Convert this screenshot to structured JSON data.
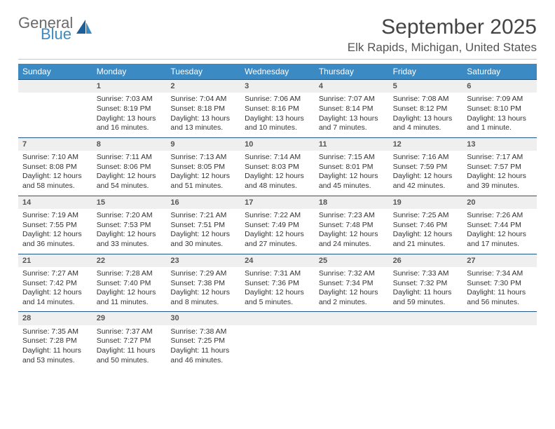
{
  "brand": {
    "general": "General",
    "blue": "Blue"
  },
  "header": {
    "month_title": "September 2025",
    "location": "Elk Rapids, Michigan, United States"
  },
  "colors": {
    "header_bg": "#3b8ac4",
    "header_text": "#ffffff",
    "daynum_bg": "#efefef",
    "daynum_border": "#20568a",
    "text": "#333333",
    "logo_gray": "#6a6a6a",
    "logo_blue": "#3b8ac4"
  },
  "weekdays": [
    "Sunday",
    "Monday",
    "Tuesday",
    "Wednesday",
    "Thursday",
    "Friday",
    "Saturday"
  ],
  "weeks": [
    [
      {
        "n": "",
        "sr": "",
        "ss": "",
        "dl": ""
      },
      {
        "n": "1",
        "sr": "Sunrise: 7:03 AM",
        "ss": "Sunset: 8:19 PM",
        "dl": "Daylight: 13 hours and 16 minutes."
      },
      {
        "n": "2",
        "sr": "Sunrise: 7:04 AM",
        "ss": "Sunset: 8:18 PM",
        "dl": "Daylight: 13 hours and 13 minutes."
      },
      {
        "n": "3",
        "sr": "Sunrise: 7:06 AM",
        "ss": "Sunset: 8:16 PM",
        "dl": "Daylight: 13 hours and 10 minutes."
      },
      {
        "n": "4",
        "sr": "Sunrise: 7:07 AM",
        "ss": "Sunset: 8:14 PM",
        "dl": "Daylight: 13 hours and 7 minutes."
      },
      {
        "n": "5",
        "sr": "Sunrise: 7:08 AM",
        "ss": "Sunset: 8:12 PM",
        "dl": "Daylight: 13 hours and 4 minutes."
      },
      {
        "n": "6",
        "sr": "Sunrise: 7:09 AM",
        "ss": "Sunset: 8:10 PM",
        "dl": "Daylight: 13 hours and 1 minute."
      }
    ],
    [
      {
        "n": "7",
        "sr": "Sunrise: 7:10 AM",
        "ss": "Sunset: 8:08 PM",
        "dl": "Daylight: 12 hours and 58 minutes."
      },
      {
        "n": "8",
        "sr": "Sunrise: 7:11 AM",
        "ss": "Sunset: 8:06 PM",
        "dl": "Daylight: 12 hours and 54 minutes."
      },
      {
        "n": "9",
        "sr": "Sunrise: 7:13 AM",
        "ss": "Sunset: 8:05 PM",
        "dl": "Daylight: 12 hours and 51 minutes."
      },
      {
        "n": "10",
        "sr": "Sunrise: 7:14 AM",
        "ss": "Sunset: 8:03 PM",
        "dl": "Daylight: 12 hours and 48 minutes."
      },
      {
        "n": "11",
        "sr": "Sunrise: 7:15 AM",
        "ss": "Sunset: 8:01 PM",
        "dl": "Daylight: 12 hours and 45 minutes."
      },
      {
        "n": "12",
        "sr": "Sunrise: 7:16 AM",
        "ss": "Sunset: 7:59 PM",
        "dl": "Daylight: 12 hours and 42 minutes."
      },
      {
        "n": "13",
        "sr": "Sunrise: 7:17 AM",
        "ss": "Sunset: 7:57 PM",
        "dl": "Daylight: 12 hours and 39 minutes."
      }
    ],
    [
      {
        "n": "14",
        "sr": "Sunrise: 7:19 AM",
        "ss": "Sunset: 7:55 PM",
        "dl": "Daylight: 12 hours and 36 minutes."
      },
      {
        "n": "15",
        "sr": "Sunrise: 7:20 AM",
        "ss": "Sunset: 7:53 PM",
        "dl": "Daylight: 12 hours and 33 minutes."
      },
      {
        "n": "16",
        "sr": "Sunrise: 7:21 AM",
        "ss": "Sunset: 7:51 PM",
        "dl": "Daylight: 12 hours and 30 minutes."
      },
      {
        "n": "17",
        "sr": "Sunrise: 7:22 AM",
        "ss": "Sunset: 7:49 PM",
        "dl": "Daylight: 12 hours and 27 minutes."
      },
      {
        "n": "18",
        "sr": "Sunrise: 7:23 AM",
        "ss": "Sunset: 7:48 PM",
        "dl": "Daylight: 12 hours and 24 minutes."
      },
      {
        "n": "19",
        "sr": "Sunrise: 7:25 AM",
        "ss": "Sunset: 7:46 PM",
        "dl": "Daylight: 12 hours and 21 minutes."
      },
      {
        "n": "20",
        "sr": "Sunrise: 7:26 AM",
        "ss": "Sunset: 7:44 PM",
        "dl": "Daylight: 12 hours and 17 minutes."
      }
    ],
    [
      {
        "n": "21",
        "sr": "Sunrise: 7:27 AM",
        "ss": "Sunset: 7:42 PM",
        "dl": "Daylight: 12 hours and 14 minutes."
      },
      {
        "n": "22",
        "sr": "Sunrise: 7:28 AM",
        "ss": "Sunset: 7:40 PM",
        "dl": "Daylight: 12 hours and 11 minutes."
      },
      {
        "n": "23",
        "sr": "Sunrise: 7:29 AM",
        "ss": "Sunset: 7:38 PM",
        "dl": "Daylight: 12 hours and 8 minutes."
      },
      {
        "n": "24",
        "sr": "Sunrise: 7:31 AM",
        "ss": "Sunset: 7:36 PM",
        "dl": "Daylight: 12 hours and 5 minutes."
      },
      {
        "n": "25",
        "sr": "Sunrise: 7:32 AM",
        "ss": "Sunset: 7:34 PM",
        "dl": "Daylight: 12 hours and 2 minutes."
      },
      {
        "n": "26",
        "sr": "Sunrise: 7:33 AM",
        "ss": "Sunset: 7:32 PM",
        "dl": "Daylight: 11 hours and 59 minutes."
      },
      {
        "n": "27",
        "sr": "Sunrise: 7:34 AM",
        "ss": "Sunset: 7:30 PM",
        "dl": "Daylight: 11 hours and 56 minutes."
      }
    ],
    [
      {
        "n": "28",
        "sr": "Sunrise: 7:35 AM",
        "ss": "Sunset: 7:28 PM",
        "dl": "Daylight: 11 hours and 53 minutes."
      },
      {
        "n": "29",
        "sr": "Sunrise: 7:37 AM",
        "ss": "Sunset: 7:27 PM",
        "dl": "Daylight: 11 hours and 50 minutes."
      },
      {
        "n": "30",
        "sr": "Sunrise: 7:38 AM",
        "ss": "Sunset: 7:25 PM",
        "dl": "Daylight: 11 hours and 46 minutes."
      },
      {
        "n": "",
        "sr": "",
        "ss": "",
        "dl": ""
      },
      {
        "n": "",
        "sr": "",
        "ss": "",
        "dl": ""
      },
      {
        "n": "",
        "sr": "",
        "ss": "",
        "dl": ""
      },
      {
        "n": "",
        "sr": "",
        "ss": "",
        "dl": ""
      }
    ]
  ]
}
